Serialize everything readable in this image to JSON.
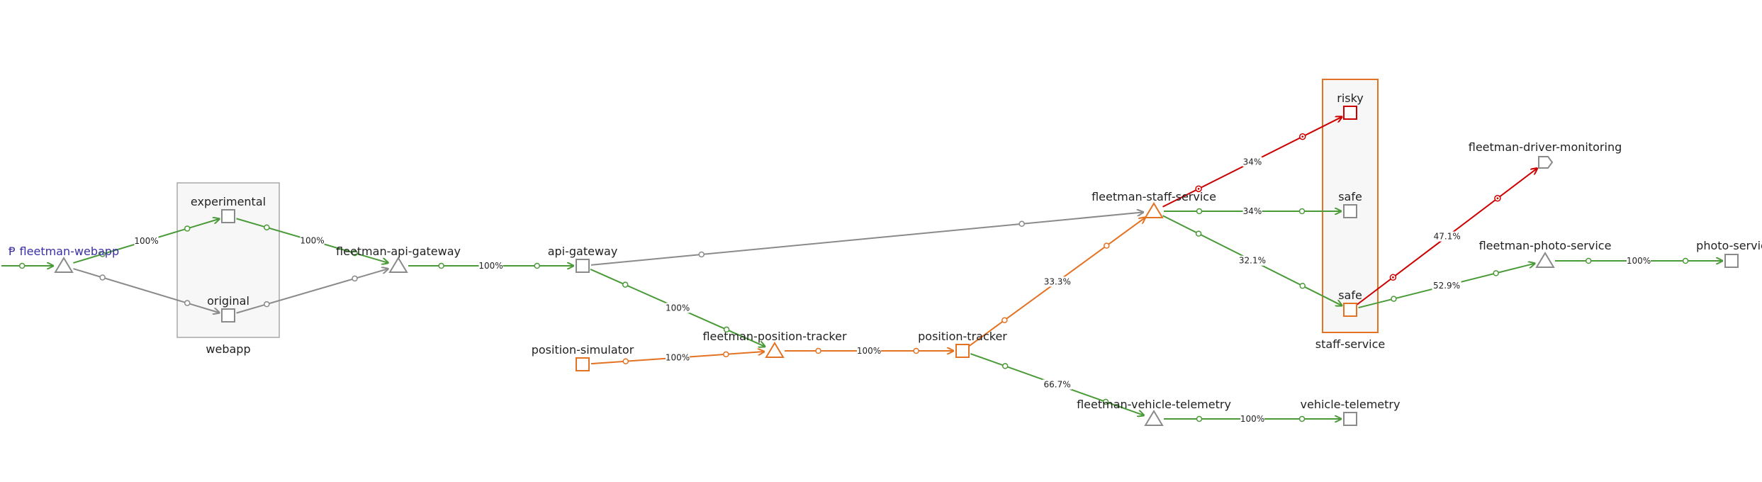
{
  "colors": {
    "ok": "#4a9a38",
    "degraded": "#e37222",
    "failure": "#cc0000",
    "idle": "#8a8a8a",
    "group_border_idle": "#a9a9a9",
    "group_border_active": "#e37222",
    "group_fill": "#f7f7f7",
    "root_label": "#3a2fa6"
  },
  "groups": [
    {
      "id": "webapp",
      "label": "webapp",
      "status": "idle"
    },
    {
      "id": "staff-service",
      "label": "staff-service",
      "status": "active"
    }
  ],
  "nodes": [
    {
      "id": "fleetman-webapp",
      "label": "fleetman-webapp",
      "shape": "triangle",
      "status": "idle",
      "root": true,
      "root_icon": "Ᵽ"
    },
    {
      "id": "webapp-experimental",
      "label": "experimental",
      "shape": "square",
      "status": "idle"
    },
    {
      "id": "webapp-original",
      "label": "original",
      "shape": "square",
      "status": "idle"
    },
    {
      "id": "fleetman-api-gateway",
      "label": "fleetman-api-gateway",
      "shape": "triangle",
      "status": "idle"
    },
    {
      "id": "api-gateway",
      "label": "api-gateway",
      "shape": "square",
      "status": "idle"
    },
    {
      "id": "position-simulator",
      "label": "position-simulator",
      "shape": "square",
      "status": "degraded"
    },
    {
      "id": "fleetman-position-tracker",
      "label": "fleetman-position-tracker",
      "shape": "triangle",
      "status": "degraded"
    },
    {
      "id": "position-tracker",
      "label": "position-tracker",
      "shape": "square",
      "status": "degraded"
    },
    {
      "id": "fleetman-staff-service",
      "label": "fleetman-staff-service",
      "shape": "triangle",
      "status": "degraded"
    },
    {
      "id": "fleetman-vehicle-telemetry",
      "label": "fleetman-vehicle-telemetry",
      "shape": "triangle",
      "status": "idle"
    },
    {
      "id": "vehicle-telemetry",
      "label": "vehicle-telemetry",
      "shape": "square",
      "status": "idle"
    },
    {
      "id": "staff-risky",
      "label": "risky",
      "shape": "square",
      "status": "failure"
    },
    {
      "id": "staff-safe-1",
      "label": "safe",
      "shape": "square",
      "status": "idle"
    },
    {
      "id": "staff-safe-2",
      "label": "safe",
      "shape": "square",
      "status": "degraded"
    },
    {
      "id": "fleetman-driver-monitoring",
      "label": "fleetman-driver-monitoring",
      "shape": "pentagon",
      "status": "idle"
    },
    {
      "id": "fleetman-photo-service",
      "label": "fleetman-photo-service",
      "shape": "triangle",
      "status": "idle"
    },
    {
      "id": "photo-service",
      "label": "photo-servic",
      "shape": "square",
      "status": "idle"
    }
  ],
  "edges": [
    {
      "from": "entry",
      "to": "fleetman-webapp",
      "status": "ok",
      "label": ""
    },
    {
      "from": "fleetman-webapp",
      "to": "webapp-experimental",
      "status": "ok",
      "label": "100%"
    },
    {
      "from": "fleetman-webapp",
      "to": "webapp-original",
      "status": "idle",
      "label": ""
    },
    {
      "from": "webapp-experimental",
      "to": "fleetman-api-gateway",
      "status": "ok",
      "label": "100%"
    },
    {
      "from": "webapp-original",
      "to": "fleetman-api-gateway",
      "status": "idle",
      "label": ""
    },
    {
      "from": "fleetman-api-gateway",
      "to": "api-gateway",
      "status": "ok",
      "label": "100%"
    },
    {
      "from": "api-gateway",
      "to": "fleetman-staff-service",
      "status": "idle",
      "label": ""
    },
    {
      "from": "api-gateway",
      "to": "fleetman-position-tracker",
      "status": "ok",
      "label": "100%"
    },
    {
      "from": "position-simulator",
      "to": "fleetman-position-tracker",
      "status": "degraded",
      "label": "100%"
    },
    {
      "from": "fleetman-position-tracker",
      "to": "position-tracker",
      "status": "degraded",
      "label": "100%"
    },
    {
      "from": "position-tracker",
      "to": "fleetman-staff-service",
      "status": "degraded",
      "label": "33.3%"
    },
    {
      "from": "position-tracker",
      "to": "fleetman-vehicle-telemetry",
      "status": "ok",
      "label": "66.7%"
    },
    {
      "from": "fleetman-vehicle-telemetry",
      "to": "vehicle-telemetry",
      "status": "ok",
      "label": "100%"
    },
    {
      "from": "fleetman-staff-service",
      "to": "staff-risky",
      "status": "failure",
      "label": "34%"
    },
    {
      "from": "fleetman-staff-service",
      "to": "staff-safe-1",
      "status": "ok",
      "label": "34%"
    },
    {
      "from": "fleetman-staff-service",
      "to": "staff-safe-2",
      "status": "ok",
      "label": "32.1%"
    },
    {
      "from": "staff-safe-2",
      "to": "fleetman-driver-monitoring",
      "status": "failure",
      "label": "47.1%"
    },
    {
      "from": "staff-safe-2",
      "to": "fleetman-photo-service",
      "status": "ok",
      "label": "52.9%"
    },
    {
      "from": "fleetman-photo-service",
      "to": "photo-service",
      "status": "ok",
      "label": "100%"
    }
  ]
}
